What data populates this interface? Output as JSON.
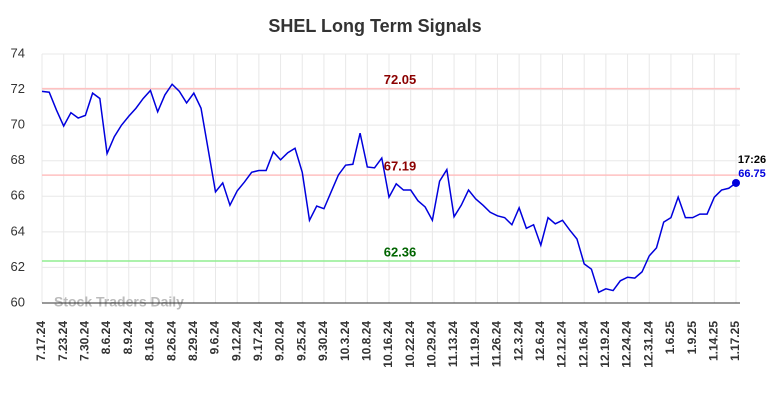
{
  "chart_data": {
    "type": "line",
    "title": "SHEL Long Term Signals",
    "categories": [
      "7.17.24",
      null,
      null,
      "7.23.24",
      null,
      null,
      "7.30.24",
      null,
      null,
      "8.6.24",
      null,
      null,
      "8.9.24",
      null,
      null,
      "8.16.24",
      null,
      null,
      "8.26.24",
      null,
      null,
      "8.29.24",
      null,
      null,
      "9.6.24",
      null,
      null,
      "9.12.24",
      null,
      null,
      "9.17.24",
      null,
      null,
      "9.20.24",
      null,
      null,
      "9.25.24",
      null,
      null,
      "9.30.24",
      null,
      null,
      "10.3.24",
      null,
      null,
      "10.8.24",
      null,
      null,
      "10.16.24",
      null,
      null,
      "10.22.24",
      null,
      null,
      "10.29.24",
      null,
      null,
      "11.13.24",
      null,
      null,
      "11.19.24",
      null,
      null,
      "11.26.24",
      null,
      null,
      "12.3.24",
      null,
      null,
      "12.6.24",
      null,
      null,
      "12.12.24",
      null,
      null,
      "12.16.24",
      null,
      null,
      "12.19.24",
      null,
      null,
      "12.24.24",
      null,
      null,
      "12.31.24",
      null,
      null,
      "1.6.25",
      null,
      null,
      "1.9.25",
      null,
      null,
      "1.14.25",
      null,
      null,
      "1.17.25"
    ],
    "series": [
      {
        "color": "#0000dd",
        "values": [
          71.9,
          71.85,
          70.85,
          69.95,
          70.7,
          70.4,
          70.55,
          71.8,
          71.5,
          68.4,
          69.35,
          70.0,
          70.5,
          70.95,
          71.5,
          71.95,
          70.75,
          71.7,
          72.3,
          71.9,
          71.25,
          71.8,
          70.95,
          68.6,
          66.25,
          66.75,
          65.5,
          66.3,
          66.8,
          67.35,
          67.45,
          67.45,
          68.5,
          68.05,
          68.45,
          68.7,
          67.35,
          64.65,
          65.45,
          65.3,
          66.25,
          67.2,
          67.75,
          67.8,
          69.55,
          67.65,
          67.6,
          68.15,
          65.95,
          66.7,
          66.35,
          66.35,
          65.75,
          65.4,
          64.65,
          66.85,
          67.5,
          64.85,
          65.5,
          66.35,
          65.85,
          65.5,
          65.1,
          64.9,
          64.8,
          64.4,
          65.35,
          64.2,
          64.4,
          63.25,
          64.8,
          64.45,
          64.65,
          64.1,
          63.6,
          62.2,
          61.9,
          60.6,
          60.8,
          60.7,
          61.25,
          61.45,
          61.4,
          61.75,
          62.65,
          63.1,
          64.55,
          64.8,
          65.95,
          64.8,
          64.8,
          65.0,
          65.0,
          65.95,
          66.35,
          66.45,
          66.75
        ]
      }
    ],
    "ylim": [
      60,
      74
    ],
    "yticks": [
      60,
      62,
      64,
      66,
      68,
      70,
      72,
      74
    ],
    "grid": true,
    "hlines": [
      {
        "value": 72.05,
        "color": "#ffc0c0",
        "label_color": "#8b0000"
      },
      {
        "value": 67.19,
        "color": "#ffc0c0",
        "label_color": "#8b0000"
      },
      {
        "value": 62.36,
        "color": "#90ee90",
        "label_color": "#006400"
      }
    ],
    "last_time": "17:26",
    "watermark": "Stock Traders Daily"
  }
}
